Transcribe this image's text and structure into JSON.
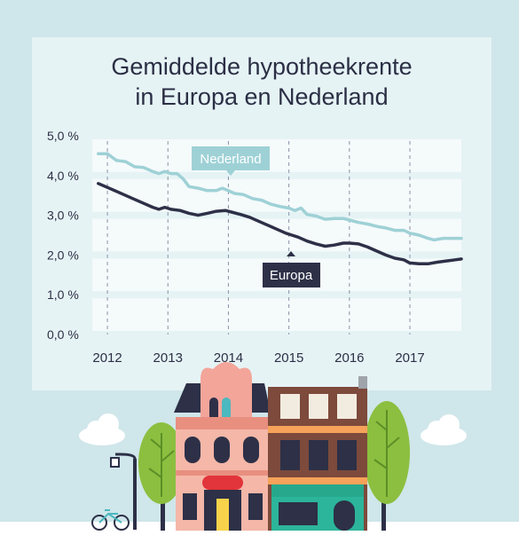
{
  "title_lines": [
    "Gemiddelde hypotheekrente",
    "in Europa en Nederland"
  ],
  "colors": {
    "background": "#cfe6ea",
    "panel": "#e6f3f5",
    "band": "#f5fafb",
    "nederland": "#9ed1d6",
    "europa": "#2d3047",
    "text": "#2b2f45"
  },
  "chart_data": {
    "type": "line",
    "title": "Gemiddelde hypotheekrente in Europa en Nederland",
    "ylim": [
      0,
      5
    ],
    "yticks": [
      "5,0 %",
      "4,0 %",
      "3,0 %",
      "2,0 %",
      "1,0 %",
      "0,0 %"
    ],
    "xticks": [
      "2012",
      "2013",
      "2014",
      "2015",
      "2016",
      "2017"
    ],
    "xlim": [
      2011.75,
      2017.85
    ],
    "grid": "dashed vertical lines at years; alternating horizontal bands",
    "series": [
      {
        "name": "Nederland",
        "x": [
          2011.85,
          2012.0,
          2012.15,
          2012.3,
          2012.45,
          2012.6,
          2012.75,
          2012.85,
          2012.95,
          2013.05,
          2013.15,
          2013.25,
          2013.35,
          2013.5,
          2013.65,
          2013.8,
          2013.9,
          2014.0,
          2014.1,
          2014.25,
          2014.4,
          2014.55,
          2014.7,
          2014.85,
          2015.0,
          2015.1,
          2015.2,
          2015.3,
          2015.45,
          2015.6,
          2015.75,
          2015.9,
          2016.0,
          2016.15,
          2016.3,
          2016.45,
          2016.6,
          2016.75,
          2016.9,
          2017.0,
          2017.15,
          2017.3,
          2017.4,
          2017.55,
          2017.7,
          2017.85
        ],
        "values": [
          4.55,
          4.55,
          4.38,
          4.35,
          4.22,
          4.2,
          4.1,
          4.05,
          4.1,
          4.05,
          4.05,
          3.92,
          3.72,
          3.68,
          3.62,
          3.62,
          3.68,
          3.62,
          3.55,
          3.52,
          3.42,
          3.38,
          3.28,
          3.22,
          3.18,
          3.12,
          3.18,
          3.02,
          2.98,
          2.9,
          2.92,
          2.92,
          2.88,
          2.82,
          2.78,
          2.72,
          2.68,
          2.62,
          2.62,
          2.55,
          2.5,
          2.42,
          2.38,
          2.42,
          2.42,
          2.42
        ]
      },
      {
        "name": "Europa",
        "x": [
          2011.85,
          2012.0,
          2012.15,
          2012.3,
          2012.45,
          2012.6,
          2012.75,
          2012.85,
          2012.95,
          2013.05,
          2013.2,
          2013.35,
          2013.5,
          2013.65,
          2013.8,
          2013.95,
          2014.05,
          2014.2,
          2014.35,
          2014.5,
          2014.65,
          2014.8,
          2014.95,
          2015.05,
          2015.15,
          2015.3,
          2015.45,
          2015.6,
          2015.75,
          2015.9,
          2016.0,
          2016.15,
          2016.3,
          2016.45,
          2016.6,
          2016.75,
          2016.9,
          2017.0,
          2017.15,
          2017.3,
          2017.45,
          2017.6,
          2017.75,
          2017.85
        ],
        "values": [
          3.8,
          3.7,
          3.6,
          3.5,
          3.4,
          3.3,
          3.2,
          3.15,
          3.2,
          3.15,
          3.12,
          3.05,
          3.0,
          3.05,
          3.1,
          3.12,
          3.08,
          3.02,
          2.95,
          2.85,
          2.75,
          2.65,
          2.55,
          2.5,
          2.45,
          2.35,
          2.28,
          2.22,
          2.25,
          2.3,
          2.3,
          2.28,
          2.2,
          2.1,
          2.0,
          1.92,
          1.88,
          1.8,
          1.78,
          1.78,
          1.82,
          1.85,
          1.88,
          1.9
        ]
      }
    ],
    "labels": [
      {
        "text": "Nederland",
        "series": "Nederland"
      },
      {
        "text": "Europa",
        "series": "Europa"
      }
    ]
  }
}
